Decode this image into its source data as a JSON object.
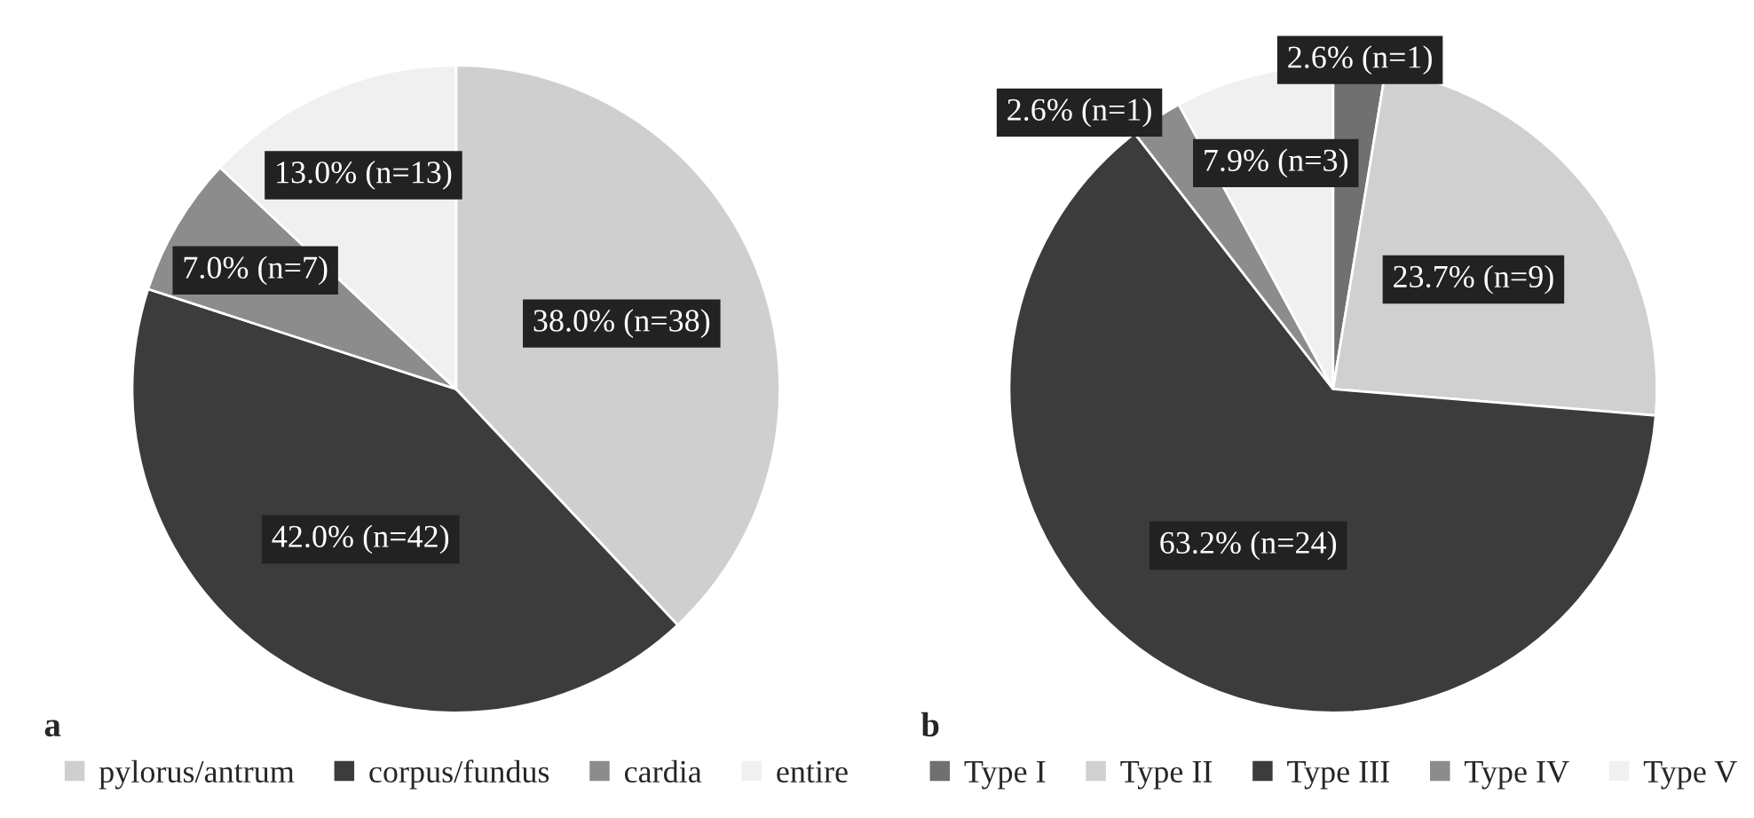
{
  "chart_data": [
    {
      "type": "pie",
      "title": "a",
      "categories": [
        "pylorus/antrum",
        "corpus/fundus",
        "cardia",
        "entire"
      ],
      "values": [
        38.0,
        42.0,
        7.0,
        13.0
      ],
      "colors": [
        "#cfcfcf",
        "#3c3c3c",
        "#8c8c8c",
        "#f0f0f0"
      ],
      "value_labels": [
        "38.0% (n=38)",
        "42.0% (n=42)",
        "7.0% (n=7)",
        "13.0% (n=13)"
      ],
      "legend": "bottom"
    },
    {
      "type": "pie",
      "title": "b",
      "categories": [
        "Type I",
        "Type II",
        "Type III",
        "Type IV",
        "Type V"
      ],
      "values": [
        2.6,
        23.7,
        63.2,
        2.6,
        7.9
      ],
      "colors": [
        "#707070",
        "#d0d0d0",
        "#3c3c3c",
        "#8c8c8c",
        "#f0f0f0"
      ],
      "value_labels": [
        "2.6% (n=1)",
        "23.7% (n=9)",
        "63.2% (n=24)",
        "2.6% (n=1)",
        "7.9% (n=3)"
      ],
      "legend": "bottom"
    }
  ]
}
